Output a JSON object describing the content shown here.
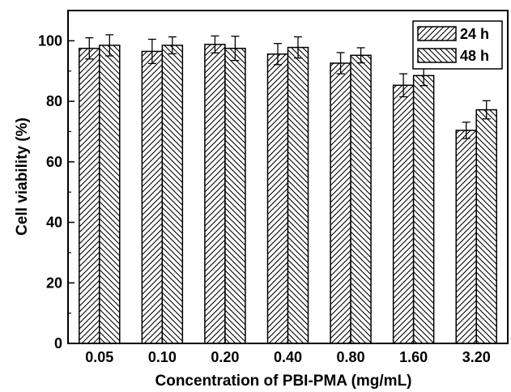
{
  "chart_data": {
    "type": "bar",
    "xlabel": "Concentration of PBI-PMA (mg/mL)",
    "ylabel": "Cell viability (%)",
    "ylim": [
      0,
      110
    ],
    "yticks": [
      0,
      20,
      40,
      60,
      80,
      100
    ],
    "categories": [
      "0.05",
      "0.10",
      "0.20",
      "0.40",
      "0.80",
      "1.60",
      "3.20"
    ],
    "series": [
      {
        "name": "24 h",
        "values": [
          97.5,
          96.5,
          98.8,
          95.6,
          92.6,
          85.3,
          70.4
        ],
        "errors": [
          3.5,
          4.0,
          2.8,
          3.5,
          3.5,
          3.8,
          2.7
        ],
        "hatch": "diagonal-up-right"
      },
      {
        "name": "48 h",
        "values": [
          98.5,
          98.5,
          97.5,
          97.8,
          95.2,
          88.5,
          77.2
        ],
        "errors": [
          3.5,
          2.8,
          4.0,
          3.5,
          2.5,
          3.3,
          3.0
        ],
        "hatch": "diagonal-down-right"
      }
    ],
    "legend_position": "top-right",
    "grid": false
  }
}
